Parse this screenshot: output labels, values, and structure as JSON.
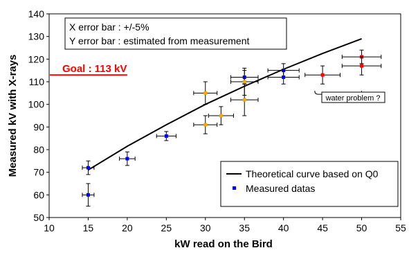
{
  "chart_data": {
    "type": "scatter",
    "xlabel": "kW read on the Bird",
    "ylabel": "Measured kV with X-rays",
    "xlim": [
      10,
      55
    ],
    "ylim": [
      50,
      140
    ],
    "x_ticks": [
      10,
      15,
      20,
      25,
      30,
      35,
      40,
      45,
      50,
      55
    ],
    "y_ticks": [
      50,
      60,
      70,
      80,
      90,
      100,
      110,
      120,
      130,
      140
    ],
    "grid": false,
    "legend_position": "bottom-right",
    "info_box": {
      "line1": "X error bar : +/-5%",
      "line2": "Y error bar : estimated from measurement"
    },
    "goal": {
      "label": "Goal : 113 kV",
      "value": 113,
      "x_range": [
        10,
        20
      ],
      "color": "#ff0000"
    },
    "annotation": {
      "label": "water problem ?",
      "x_range": [
        44,
        50
      ],
      "y": 106
    },
    "theory_curve": {
      "name": "Theoretical curve based on Q0",
      "x": [
        15,
        20,
        25,
        30,
        35,
        40,
        45,
        50
      ],
      "y": [
        71,
        81.5,
        91,
        100,
        108,
        115.5,
        122.5,
        129
      ]
    },
    "legend_entries": [
      {
        "label": "Theoretical curve based on Q0",
        "kind": "line",
        "color": "#000000"
      },
      {
        "label": "Measured datas",
        "kind": "marker",
        "color": "#0000ff"
      }
    ],
    "series": [
      {
        "name": "Measured datas",
        "color": "#0000ff",
        "points": [
          {
            "x": 15,
            "y": 72,
            "yerr": 3
          },
          {
            "x": 15,
            "y": 60,
            "yerr": 5
          },
          {
            "x": 20,
            "y": 76,
            "yerr": 3
          },
          {
            "x": 25,
            "y": 86,
            "yerr": 2
          },
          {
            "x": 35,
            "y": 112,
            "yerr": 3
          },
          {
            "x": 40,
            "y": 115,
            "yerr": 3
          },
          {
            "x": 40,
            "y": 112,
            "yerr": 3
          }
        ]
      },
      {
        "color": "#ffa500",
        "points": [
          {
            "x": 30,
            "y": 105,
            "yerr": 5
          },
          {
            "x": 30,
            "y": 91,
            "yerr": 4
          },
          {
            "x": 32,
            "y": 95,
            "yerr": 4
          },
          {
            "x": 35,
            "y": 110,
            "yerr": 6
          },
          {
            "x": 35,
            "y": 102,
            "yerr": 7
          }
        ]
      },
      {
        "color": "#ff0000",
        "points": [
          {
            "x": 45,
            "y": 113,
            "yerr": 4
          },
          {
            "x": 50,
            "y": 121,
            "yerr": 3
          },
          {
            "x": 50,
            "y": 117,
            "yerr": 4
          }
        ]
      }
    ]
  }
}
